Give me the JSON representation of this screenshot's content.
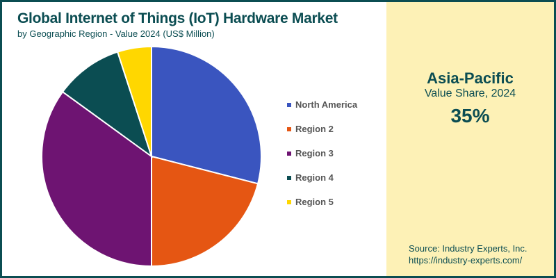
{
  "chart_data": {
    "type": "pie",
    "title": "Global Internet of Things (IoT) Hardware Market",
    "subtitle": "by Geographic Region - Value 2024 (US$ Million)",
    "categories": [
      "North America",
      "Region 2",
      "Region 3",
      "Region 4",
      "Region 5"
    ],
    "values": [
      29,
      21,
      35,
      10,
      5
    ],
    "colors": [
      "#3a55bf",
      "#e55613",
      "#6e1472",
      "#0b4d52",
      "#ffd700"
    ],
    "legend_position": "right"
  },
  "highlight": {
    "region": "Asia-Pacific",
    "label": "Value Share, 2024",
    "value": "35%"
  },
  "source": {
    "line1": "Source: Industry Experts, Inc.",
    "line2": "https://industry-experts.com/"
  }
}
